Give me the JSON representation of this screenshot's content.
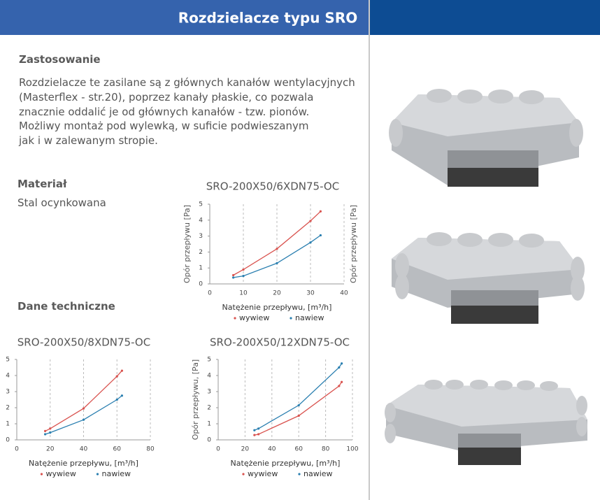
{
  "header": {
    "title": "Rozdzielacze typu SRO"
  },
  "sections": {
    "application": {
      "heading": "Zastosowanie",
      "lines": [
        "Rozdzielacze te zasilane są z głównych kanałów wentylacyjnych",
        "(Masterflex - str.20), poprzez kanały płaskie, co pozwala",
        "znacznie oddalić je od głównych kanałów - tzw. pionów.",
        "Możliwy montaż pod wylewką, w suficie podwieszanym",
        "jak i w zalewanym stropie."
      ]
    },
    "material": {
      "heading": "Materiał",
      "text": "Stal ocynkowana"
    },
    "technical": {
      "heading": "Dane techniczne"
    }
  },
  "chart_data": [
    {
      "type": "line",
      "title": "SRO-200X50/6XDN75-OC",
      "x_label": "Natężenie przepływu, [m³/h]",
      "y_label": "Opór przepływu [Pa]",
      "y_label_right": "Opór przepływu [Pa]",
      "x": [
        7,
        10,
        20,
        30,
        33
      ],
      "xlim": [
        0,
        40
      ],
      "xticks": [
        0,
        10,
        20,
        30,
        40
      ],
      "ylim": [
        0,
        5
      ],
      "yticks": [
        0,
        1,
        2,
        3,
        4,
        5
      ],
      "grid": true,
      "series": [
        {
          "name": "wywiew",
          "color": "#d9534f",
          "values": [
            0.55,
            0.9,
            2.2,
            3.95,
            4.55
          ]
        },
        {
          "name": "nawiew",
          "color": "#2a7fb0",
          "values": [
            0.4,
            0.5,
            1.3,
            2.6,
            3.05
          ]
        }
      ]
    },
    {
      "type": "line",
      "title": "SRO-200X50/8XDN75-OC",
      "x_label": "Natężenie przepływu, [m³/h]",
      "x": [
        17,
        20,
        40,
        60,
        63
      ],
      "xlim": [
        0,
        80
      ],
      "xticks": [
        0,
        20,
        40,
        60,
        80
      ],
      "ylim": [
        0,
        5
      ],
      "yticks": [
        0,
        1,
        2,
        3,
        4,
        5
      ],
      "grid": true,
      "series": [
        {
          "name": "wywiew",
          "color": "#d9534f",
          "values": [
            0.55,
            0.7,
            1.95,
            3.95,
            4.3
          ]
        },
        {
          "name": "nawiew",
          "color": "#2a7fb0",
          "values": [
            0.35,
            0.45,
            1.25,
            2.5,
            2.75
          ]
        }
      ]
    },
    {
      "type": "line",
      "title": "SRO-200X50/12XDN75-OC",
      "x_label": "Natężenie przepływu, [m³/h]",
      "y_label": "Opór przepływu, [Pa]",
      "x": [
        27,
        30,
        60,
        90,
        92
      ],
      "xlim": [
        0,
        100
      ],
      "xticks": [
        0,
        20,
        40,
        60,
        80,
        100
      ],
      "ylim": [
        0,
        5
      ],
      "yticks": [
        0,
        1,
        2,
        3,
        4,
        5
      ],
      "grid": true,
      "series": [
        {
          "name": "wywiew",
          "color": "#d9534f",
          "values": [
            0.3,
            0.35,
            1.5,
            3.35,
            3.6
          ]
        },
        {
          "name": "nawiew",
          "color": "#2a7fb0",
          "values": [
            0.6,
            0.7,
            2.15,
            4.5,
            4.75
          ]
        }
      ]
    }
  ]
}
